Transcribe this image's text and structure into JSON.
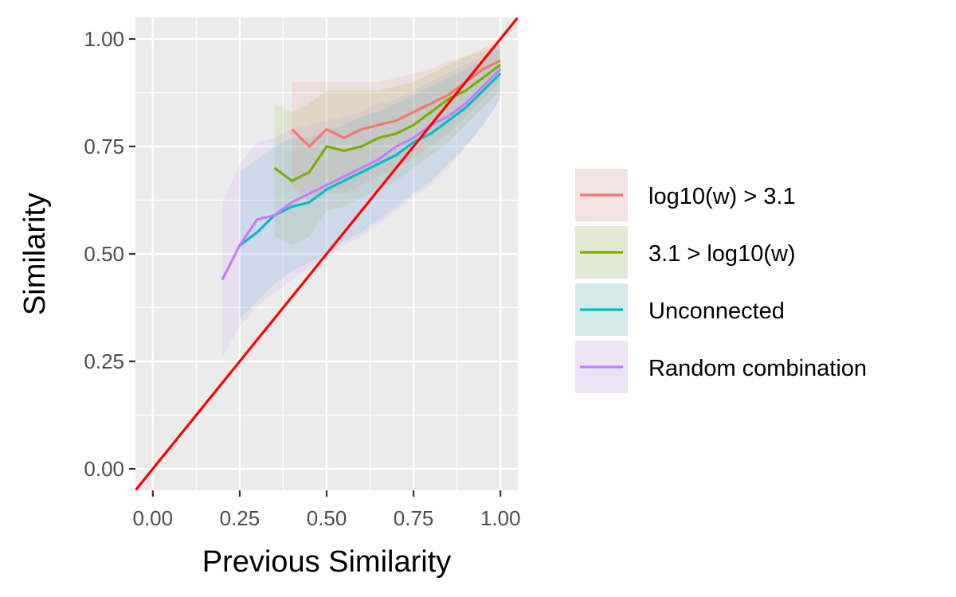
{
  "chart_data": {
    "type": "line",
    "title": "",
    "xlabel": "Previous Similarity",
    "ylabel": "Similarity",
    "xlim": [
      -0.05,
      1.05
    ],
    "ylim": [
      -0.05,
      1.05
    ],
    "x_ticks": [
      "0.00",
      "0.25",
      "0.50",
      "0.75",
      "1.00"
    ],
    "y_ticks": [
      "0.00",
      "0.25",
      "0.50",
      "0.75",
      "1.00"
    ],
    "grid": true,
    "legend_position": "right",
    "series": [
      {
        "name": "log10(w) > 3.1",
        "color": "#F8766D",
        "x": [
          0.4,
          0.45,
          0.5,
          0.55,
          0.6,
          0.65,
          0.7,
          0.75,
          0.8,
          0.85,
          0.9,
          0.95,
          1.0
        ],
        "y": [
          0.79,
          0.75,
          0.79,
          0.77,
          0.79,
          0.8,
          0.81,
          0.83,
          0.85,
          0.87,
          0.9,
          0.93,
          0.95
        ],
        "lower": [
          0.66,
          0.62,
          0.64,
          0.64,
          0.66,
          0.68,
          0.7,
          0.72,
          0.75,
          0.78,
          0.82,
          0.86,
          0.9
        ],
        "upper": [
          0.9,
          0.9,
          0.9,
          0.9,
          0.9,
          0.9,
          0.91,
          0.92,
          0.93,
          0.95,
          0.96,
          0.98,
          0.99
        ]
      },
      {
        "name": "3.1 > log10(w)",
        "color": "#7CAE00",
        "x": [
          0.35,
          0.4,
          0.45,
          0.5,
          0.55,
          0.6,
          0.65,
          0.7,
          0.75,
          0.8,
          0.85,
          0.9,
          0.95,
          1.0
        ],
        "y": [
          0.7,
          0.67,
          0.69,
          0.75,
          0.74,
          0.75,
          0.77,
          0.78,
          0.8,
          0.83,
          0.86,
          0.88,
          0.91,
          0.94
        ],
        "lower": [
          0.54,
          0.52,
          0.54,
          0.6,
          0.61,
          0.63,
          0.65,
          0.67,
          0.7,
          0.73,
          0.76,
          0.8,
          0.84,
          0.88
        ],
        "upper": [
          0.85,
          0.83,
          0.85,
          0.88,
          0.88,
          0.88,
          0.88,
          0.89,
          0.9,
          0.92,
          0.94,
          0.96,
          0.97,
          0.99
        ]
      },
      {
        "name": "Unconnected",
        "color": "#00BFC4",
        "x": [
          0.25,
          0.3,
          0.35,
          0.4,
          0.45,
          0.5,
          0.55,
          0.6,
          0.65,
          0.7,
          0.75,
          0.8,
          0.85,
          0.9,
          0.95,
          1.0
        ],
        "y": [
          0.52,
          0.55,
          0.59,
          0.61,
          0.62,
          0.65,
          0.67,
          0.69,
          0.71,
          0.73,
          0.76,
          0.78,
          0.81,
          0.84,
          0.88,
          0.92
        ],
        "lower": [
          0.35,
          0.39,
          0.43,
          0.46,
          0.48,
          0.5,
          0.53,
          0.55,
          0.58,
          0.61,
          0.64,
          0.67,
          0.71,
          0.75,
          0.8,
          0.86
        ],
        "upper": [
          0.69,
          0.72,
          0.75,
          0.77,
          0.77,
          0.79,
          0.8,
          0.82,
          0.83,
          0.85,
          0.87,
          0.89,
          0.91,
          0.93,
          0.95,
          0.98
        ]
      },
      {
        "name": "Random combination",
        "color": "#C77CFF",
        "x": [
          0.2,
          0.25,
          0.3,
          0.35,
          0.4,
          0.45,
          0.5,
          0.55,
          0.6,
          0.65,
          0.7,
          0.75,
          0.8,
          0.85,
          0.9,
          0.95,
          1.0
        ],
        "y": [
          0.44,
          0.52,
          0.58,
          0.59,
          0.62,
          0.64,
          0.66,
          0.68,
          0.7,
          0.72,
          0.75,
          0.77,
          0.8,
          0.82,
          0.85,
          0.89,
          0.93
        ],
        "lower": [
          0.26,
          0.33,
          0.38,
          0.41,
          0.44,
          0.47,
          0.49,
          0.52,
          0.54,
          0.57,
          0.6,
          0.63,
          0.66,
          0.7,
          0.75,
          0.8,
          0.86
        ],
        "upper": [
          0.62,
          0.71,
          0.76,
          0.77,
          0.79,
          0.8,
          0.81,
          0.82,
          0.83,
          0.85,
          0.86,
          0.88,
          0.9,
          0.92,
          0.94,
          0.96,
          0.99
        ]
      }
    ],
    "reference_line": {
      "kind": "identity (y = x)",
      "color": "#FF0000"
    }
  }
}
